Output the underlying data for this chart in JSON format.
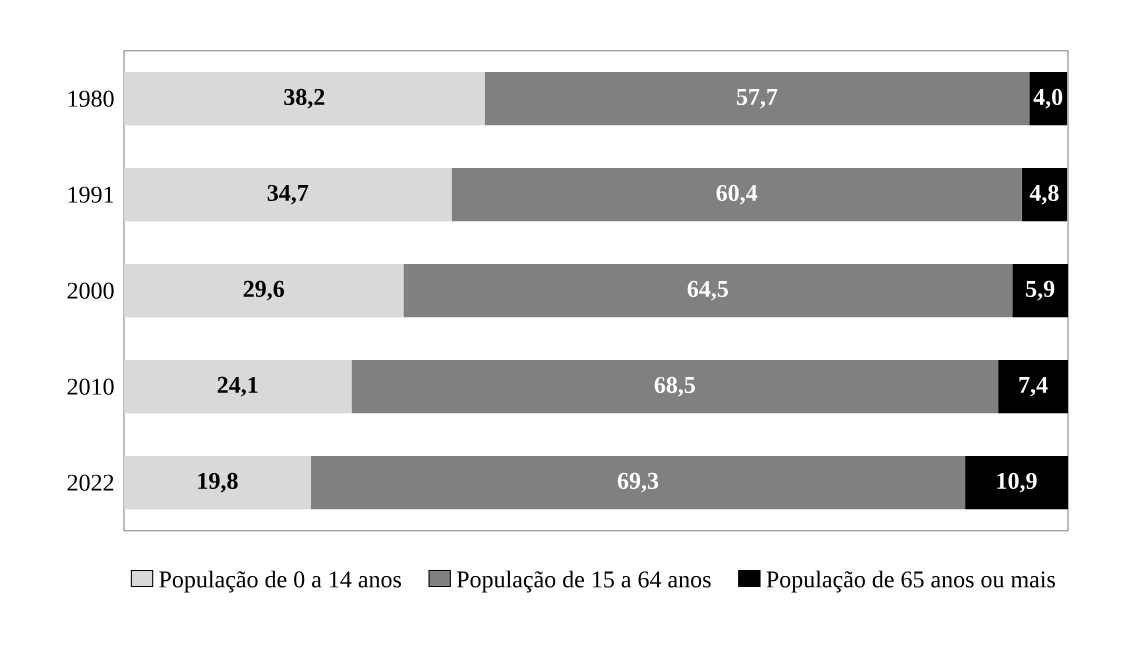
{
  "chart_data": {
    "type": "bar",
    "orientation": "horizontal",
    "stacked": true,
    "categories": [
      "1980",
      "1991",
      "2000",
      "2010",
      "2022"
    ],
    "tick_labels": "y",
    "legend": "bottom",
    "series": [
      {
        "name": "População de 0 a 14 anos",
        "color": "#d9d9d9",
        "values": [
          38.2,
          34.7,
          29.6,
          24.1,
          19.8
        ],
        "value_labels": [
          "38,2",
          "34,7",
          "29,6",
          "24,1",
          "19,8"
        ]
      },
      {
        "name": "População de 15 a 64 anos",
        "color": "#808080",
        "values": [
          57.7,
          60.4,
          64.5,
          68.5,
          69.3
        ],
        "value_labels": [
          "57,7",
          "60,4",
          "64,5",
          "68,5",
          "69,3"
        ]
      },
      {
        "name": "População de 65 anos ou mais",
        "color": "#000000",
        "values": [
          4.0,
          4.8,
          5.9,
          7.4,
          10.9
        ],
        "value_labels": [
          "4,0",
          "4,8",
          "5,9",
          "7,4",
          "10,9"
        ]
      }
    ]
  }
}
